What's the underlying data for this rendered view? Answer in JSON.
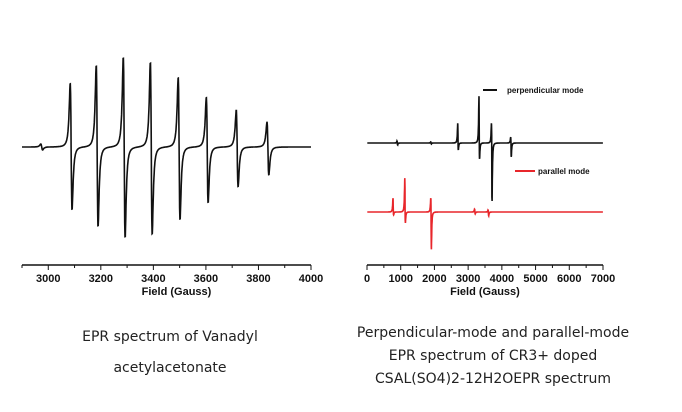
{
  "chart_data": [
    {
      "type": "line",
      "title": "",
      "xlabel": "Field (Gauss)",
      "ylabel": "",
      "xlim": [
        2900,
        4000
      ],
      "ylim": [
        -100,
        100
      ],
      "xticks": [
        3000,
        3200,
        3400,
        3600,
        3800,
        4000
      ],
      "tick_labels": [
        "3000",
        "3200",
        "3400",
        "3600",
        "3800",
        "4000"
      ],
      "grid": false,
      "series": [
        {
          "name": "Vanadyl acetylacetonate",
          "color": "#111111",
          "width_gauss": 6,
          "lines": [
            {
              "field": 2975,
              "up": 3,
              "down": 3
            },
            {
              "field": 3087,
              "up": 64,
              "down": 63
            },
            {
              "field": 3186,
              "up": 82,
              "down": 80
            },
            {
              "field": 3289,
              "up": 90,
              "down": 91
            },
            {
              "field": 3392,
              "up": 85,
              "down": 88
            },
            {
              "field": 3498,
              "up": 70,
              "down": 73
            },
            {
              "field": 3605,
              "up": 50,
              "down": 56
            },
            {
              "field": 3719,
              "up": 37,
              "down": 40
            },
            {
              "field": 3836,
              "up": 25,
              "down": 28
            }
          ]
        }
      ],
      "caption": [
        "EPR spectrum of Vanadyl",
        "acetylacetonate"
      ]
    },
    {
      "type": "line",
      "title": "",
      "xlabel": "Field (Gauss)",
      "ylabel": "",
      "xlim": [
        0,
        7000
      ],
      "ylim": [
        -100,
        60
      ],
      "xticks": [
        0,
        1000,
        2000,
        3000,
        4000,
        5000,
        6000,
        7000
      ],
      "tick_labels": [
        "0",
        "1000",
        "2000",
        "3000",
        "4000",
        "5000",
        "6000",
        "7000"
      ],
      "grid": false,
      "legend_position": "right",
      "series": [
        {
          "name": "perpendicular mode",
          "color": "#111111",
          "offset": 0,
          "width_gauss": 15,
          "lines": [
            {
              "field": 900,
              "up": 2,
              "down": 2
            },
            {
              "field": 1900,
              "up": 1,
              "down": 1
            },
            {
              "field": 2700,
              "up": 20,
              "down": 7
            },
            {
              "field": 3330,
              "up": 47,
              "down": 16
            },
            {
              "field": 3700,
              "up": 20,
              "down": 59
            },
            {
              "field": 4270,
              "up": 6,
              "down": 14
            }
          ]
        },
        {
          "name": "parallel mode",
          "color": "#e8262b",
          "offset": -69,
          "width_gauss": 15,
          "lines": [
            {
              "field": 780,
              "up": 14,
              "down": 3
            },
            {
              "field": 1130,
              "up": 34,
              "down": 11
            },
            {
              "field": 1900,
              "up": 14,
              "down": 38
            },
            {
              "field": 3200,
              "up": 3,
              "down": 2
            },
            {
              "field": 3600,
              "up": 2,
              "down": 4
            }
          ]
        }
      ],
      "caption": [
        "Perpendicular-mode and parallel-mode",
        "EPR spectrum of CR3+ doped",
        "CSAL(SO4)2-12H2OEPR spectrum"
      ]
    }
  ]
}
